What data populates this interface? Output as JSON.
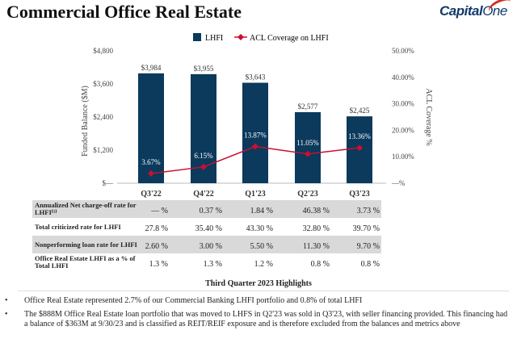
{
  "header": {
    "title": "Commercial Office Real Estate",
    "logo": "CapitalOne"
  },
  "chart_data": {
    "type": "bar",
    "categories": [
      "Q3'22",
      "Q4'22",
      "Q1'23",
      "Q2'23",
      "Q3'23"
    ],
    "series": [
      {
        "name": "LHFI",
        "type": "bar",
        "axis": "left",
        "values": [
          3984,
          3955,
          3643,
          2577,
          2425
        ],
        "labels": [
          "$3,984",
          "$3,955",
          "$3,643",
          "$2,577",
          "$2,425"
        ],
        "color": "#0b3a5c"
      },
      {
        "name": "ACL Coverage on LHFI",
        "type": "line",
        "axis": "right",
        "values": [
          3.67,
          6.15,
          13.87,
          11.05,
          13.36
        ],
        "labels": [
          "3.67%",
          "6.15%",
          "13.87%",
          "11.05%",
          "13.36%"
        ],
        "color": "#c8102e"
      }
    ],
    "ylabel": "Funded Balance ($M)",
    "y2label": "ACL Coverage %",
    "ylim": [
      0,
      4800
    ],
    "y2lim": [
      0,
      50
    ],
    "yticks": [
      "$—",
      "$1,200",
      "$2,400",
      "$3,600",
      "$4,800"
    ],
    "y2ticks": [
      "—%",
      "10.00%",
      "20.00%",
      "30.00%",
      "40.00%",
      "50.00%"
    ],
    "legend": "top",
    "grid": false
  },
  "table": {
    "rows": [
      {
        "label": "Annualized Net charge-off rate for LHFI⁽¹⁾",
        "values": [
          "— %",
          "0.37 %",
          "1.84 %",
          "46.38 %",
          "3.73 %"
        ]
      },
      {
        "label": "Total criticized rate for LHFI",
        "values": [
          "27.8 %",
          "35.40 %",
          "43.30 %",
          "32.80 %",
          "39.70 %"
        ]
      },
      {
        "label": "Nonperforming loan rate for LHFI",
        "values": [
          "2.60 %",
          "3.00 %",
          "5.50 %",
          "11.30 %",
          "9.70 %"
        ]
      },
      {
        "label": "Office Real Estate LHFI as a % of Total LHFI",
        "values": [
          "1.3 %",
          "1.3 %",
          "1.2 %",
          "0.8 %",
          "0.8 %"
        ]
      }
    ]
  },
  "highlights": {
    "title": "Third Quarter 2023 Highlights",
    "bullet": "•",
    "items": [
      "Office Real Estate represented 2.7% of our Commercial Banking LHFI portfolio and 0.8% of total LHFI",
      "The $888M Office Real Estate loan portfolio that was moved to LHFS in Q2'23 was sold in Q3'23, with seller financing provided. This financing had a balance of $363M at 9/30/23 and is classified as REIT/REIF exposure and is therefore excluded from the balances and metrics above"
    ]
  }
}
